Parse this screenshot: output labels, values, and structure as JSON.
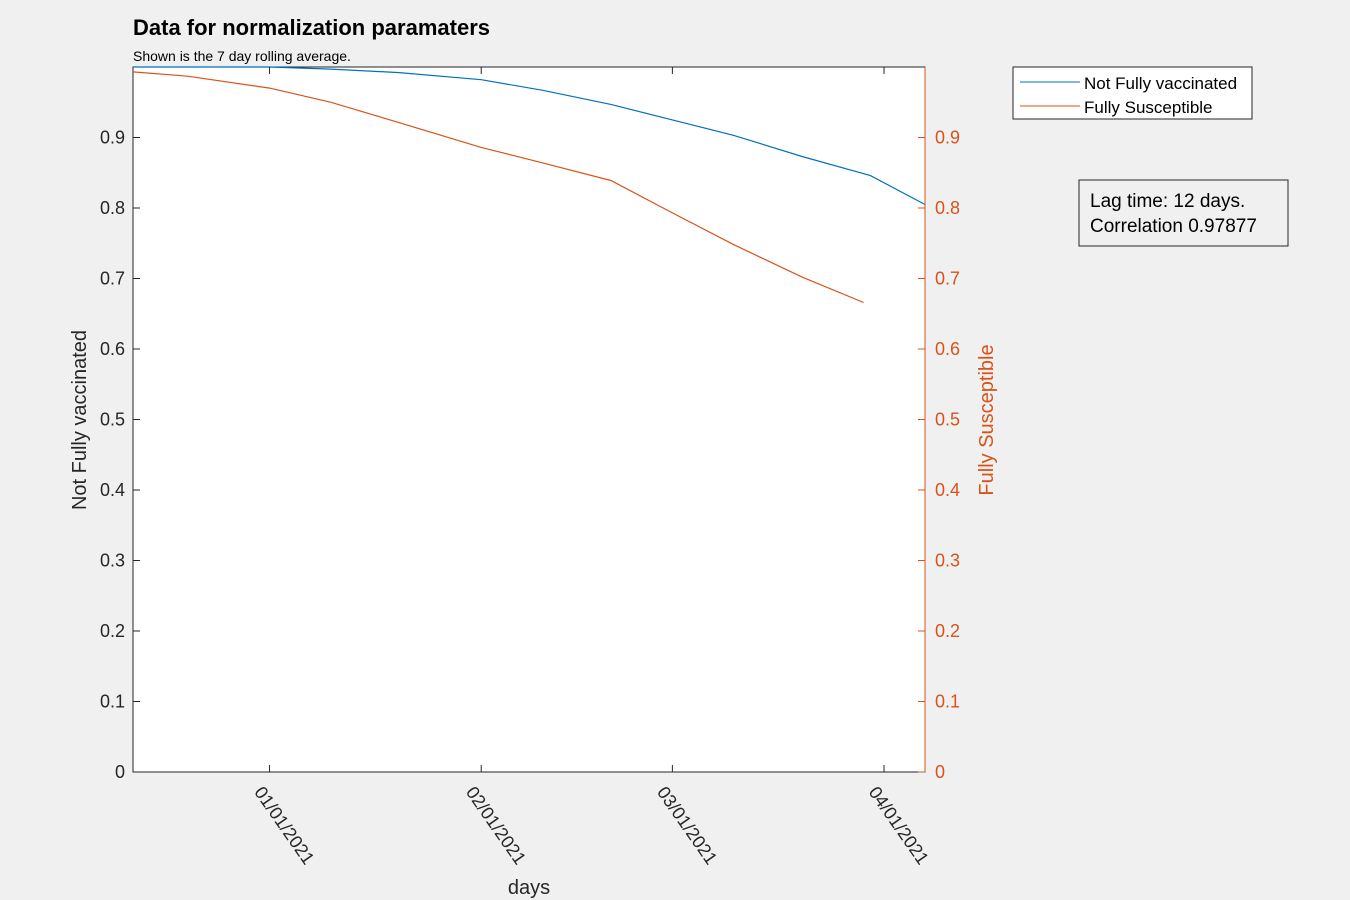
{
  "chart_data": {
    "type": "line",
    "title": "Data for normalization paramaters",
    "subtitle": "Shown is the 7 day rolling average.",
    "xlabel": "days",
    "ylabel_left": "Not Fully vaccinated",
    "ylabel_right": "Fully Susceptible",
    "xlim": [
      "2020-12-12",
      "2021-04-07"
    ],
    "ylim_left": [
      0,
      1
    ],
    "ylim_right": [
      0,
      1
    ],
    "x_ticks": [
      "01/01/2021",
      "02/01/2021",
      "03/01/2021",
      "04/01/2021"
    ],
    "x_tick_dates": [
      "2021-01-01",
      "2021-02-01",
      "2021-03-01",
      "2021-04-01"
    ],
    "y_ticks_left": [
      "0",
      "0.1",
      "0.2",
      "0.3",
      "0.4",
      "0.5",
      "0.6",
      "0.7",
      "0.8",
      "0.9"
    ],
    "y_ticks_right": [
      "0",
      "0.1",
      "0.2",
      "0.3",
      "0.4",
      "0.5",
      "0.6",
      "0.7",
      "0.8",
      "0.9"
    ],
    "grid": false,
    "legend_position": "outside-top-right",
    "annotation": [
      "Lag time: 12 days.",
      "Correlation 0.97877"
    ],
    "colors": {
      "series_1": "#0072BD",
      "series_2": "#D95319"
    },
    "series": [
      {
        "name": "Not Fully vaccinated",
        "axis": "left",
        "x": [
          "2020-12-12",
          "2020-12-20",
          "2021-01-01",
          "2021-01-10",
          "2021-01-20",
          "2021-02-01",
          "2021-02-10",
          "2021-02-20",
          "2021-03-01",
          "2021-03-10",
          "2021-03-20",
          "2021-03-30",
          "2021-04-07"
        ],
        "y": [
          1.0,
          1.0,
          1.0,
          0.997,
          0.992,
          0.982,
          0.967,
          0.947,
          0.925,
          0.903,
          0.873,
          0.846,
          0.805
        ]
      },
      {
        "name": "Fully Susceptible",
        "axis": "right",
        "x": [
          "2020-12-12",
          "2020-12-20",
          "2021-01-01",
          "2021-01-10",
          "2021-01-20",
          "2021-02-01",
          "2021-02-10",
          "2021-02-20",
          "2021-03-01",
          "2021-03-10",
          "2021-03-20",
          "2021-03-29"
        ],
        "y": [
          0.993,
          0.987,
          0.97,
          0.95,
          0.921,
          0.886,
          0.864,
          0.839,
          0.793,
          0.748,
          0.702,
          0.666
        ]
      }
    ]
  }
}
